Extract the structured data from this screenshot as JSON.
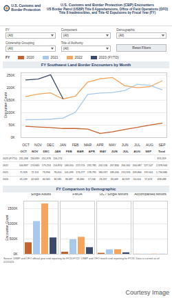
{
  "header": {
    "agency": "U.S. Customs and Border Protection",
    "title": "U.S. Customs and Border Protection (CBP) Encounters",
    "subtitle": "US Border Patrol (USBP) Title 8 Apprehensions, Office of Field Operations (OFO) Title 8 Inadmissibles, and Title 42 Expulsions by Fiscal Year (FY)"
  },
  "filters": [
    {
      "label": "FY",
      "value": "(All)"
    },
    {
      "label": "Component",
      "value": "(All)"
    },
    {
      "label": "Demographic",
      "value": "(All)"
    },
    {
      "label": "Citizenship Grouping",
      "value": "(All)"
    },
    {
      "label": "Title of Authority",
      "value": "(All)"
    }
  ],
  "reset_button": "Reset Filters",
  "legend_title": "FY",
  "chart_data": [
    {
      "type": "line",
      "title": "FY Southwest Land Border Encounters by Month",
      "y_label": "Encounter Count",
      "categories": [
        "OCT",
        "NOV",
        "DEC",
        "JAN",
        "FEB",
        "MAR",
        "APR",
        "MAY",
        "JUN",
        "JUL",
        "AUG",
        "SEP"
      ],
      "series": [
        {
          "name": "2020",
          "color": "#c4622d",
          "values": [
            45139,
            42643,
            40565,
            36585,
            36687,
            34460,
            17106,
            23237,
            33049,
            40929,
            50014,
            57674
          ]
        },
        {
          "name": "2021",
          "color": "#a9c9ec",
          "values": [
            71929,
            72113,
            73994,
            78414,
            101099,
            173277,
            178795,
            180597,
            189034,
            213593,
            209840,
            192001
          ]
        },
        {
          "name": "2022",
          "color": "#f6a55e",
          "values": [
            164837,
            174845,
            179253,
            154874,
            166010,
            222574,
            235785,
            241136,
            207834,
            200162,
            204087,
            227547
          ]
        },
        {
          "name": "2023 (FYTD)",
          "color": "#3b4a6b",
          "values": [
            231268,
            234839,
            251978,
            156274,
            null,
            null,
            null,
            null,
            null,
            null,
            null,
            null
          ]
        }
      ],
      "ylim": [
        0,
        260000
      ],
      "yticks": [
        {
          "value": 0,
          "label": "0K"
        },
        {
          "value": 50000,
          "label": "50K"
        },
        {
          "value": 100000,
          "label": "100K"
        },
        {
          "value": 150000,
          "label": "150K"
        },
        {
          "value": 200000,
          "label": "200K"
        },
        {
          "value": 250000,
          "label": "250K"
        }
      ],
      "grid": true,
      "legend": "top"
    },
    {
      "type": "bar",
      "title": "FY Comparison by Demographic",
      "y_label": "Encounter Count",
      "categories": [
        "Single Adults",
        "FMUA",
        "UC / Single Minors",
        "Accompanied Minors"
      ],
      "series": [
        {
          "name": "2020",
          "color": "#c4622d",
          "values": [
            380000,
            70000,
            33000,
            3000
          ]
        },
        {
          "name": "2021",
          "color": "#a9c9ec",
          "values": [
            1080000,
            480000,
            147000,
            5000
          ]
        },
        {
          "name": "2022",
          "color": "#f6a55e",
          "values": [
            1660000,
            560000,
            152000,
            6000
          ]
        },
        {
          "name": "2023 (FYTD)",
          "color": "#3b4a6b",
          "values": [
            540000,
            220000,
            50000,
            2000
          ]
        }
      ],
      "ylim": [
        0,
        1750000
      ],
      "yticks": [
        {
          "value": 0,
          "label": "0K"
        },
        {
          "value": 500000,
          "label": "500K"
        },
        {
          "value": 1000000,
          "label": "1000K"
        },
        {
          "value": 1500000,
          "label": "1500K"
        }
      ],
      "grid": true,
      "tick_labels": "y"
    }
  ],
  "table": {
    "columns": [
      "OCT",
      "NOV",
      "DEC",
      "JAN",
      "FEB",
      "MAR",
      "APR",
      "MAY",
      "JUN",
      "JUL",
      "AUG",
      "SEP",
      "Total"
    ],
    "rows": [
      [
        "2023 (FYTD)",
        "231,268",
        "234,839",
        "251,978",
        "156,274",
        "",
        "",
        "",
        "",
        "",
        "",
        "",
        "",
        "874,359"
      ],
      [
        "2022",
        "164,837",
        "174,845",
        "179,253",
        "154,874",
        "166,010",
        "222,574",
        "235,785",
        "241,136",
        "207,834",
        "200,162",
        "204,087",
        "227,547",
        "2,378,944"
      ],
      [
        "2021",
        "71,929",
        "72,113",
        "73,994",
        "78,414",
        "101,099",
        "173,277",
        "178,795",
        "180,597",
        "189,034",
        "213,593",
        "209,840",
        "192,001",
        "1,734,686"
      ],
      [
        "2020",
        "45,139",
        "42,643",
        "40,565",
        "36,585",
        "36,687",
        "34,460",
        "17,106",
        "23,237",
        "33,049",
        "40,929",
        "50,014",
        "57,674",
        "458,088"
      ]
    ]
  },
  "source": "Source: USBP and OFO official year end reporting for FY20-FY22; USBP and OFO month end reporting for FY23. Data is current as of 2/2/2023.",
  "credit": "Courtesy Image"
}
